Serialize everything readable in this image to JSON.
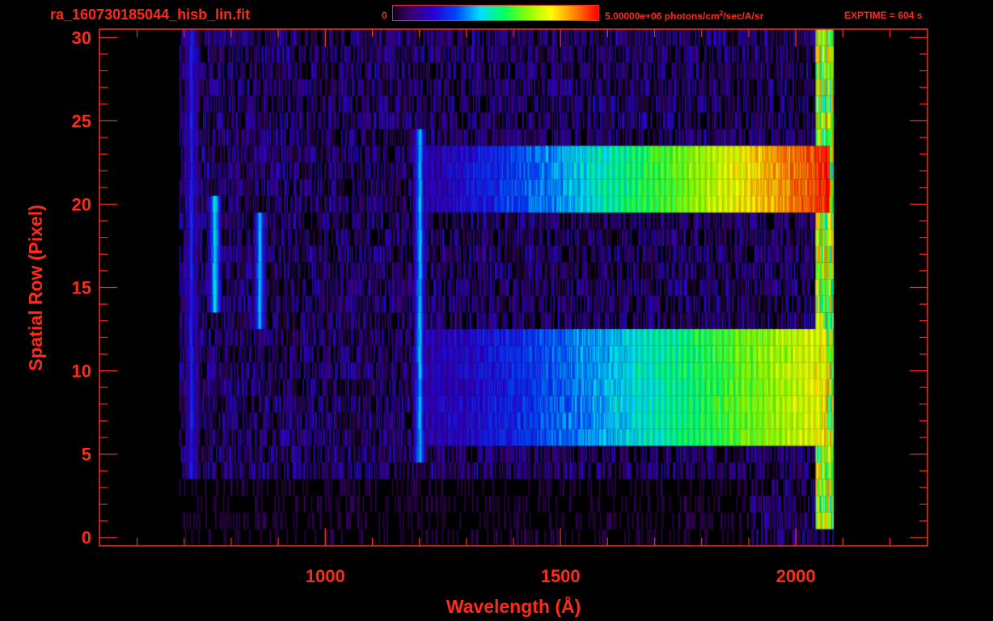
{
  "header": {
    "file_title": "ra_160730185044_hisb_lin.fit",
    "colorbar_min": "0",
    "colorbar_max_prefix": "5.00000e+06 photons/cm",
    "colorbar_max_sup": "2",
    "colorbar_max_suffix": "/sec/A/sr",
    "exptime": "EXPTIME = 604 s"
  },
  "colors": {
    "axis": "#ff2a1a",
    "background": "#000000",
    "colormap": [
      "#000000",
      "#3a0066",
      "#2a00cc",
      "#0044ff",
      "#00ddff",
      "#00ff66",
      "#88ff00",
      "#ffff00",
      "#ff8800",
      "#ff0000"
    ]
  },
  "chart_data": {
    "type": "heatmap",
    "title": "ra_160730185044_hisb_lin.fit",
    "xlabel": "Wavelength (Å)",
    "ylabel": "Spatial Row (Pixel)",
    "xlim": [
      520,
      2280
    ],
    "ylim": [
      -0.5,
      30.5
    ],
    "x_ticks": [
      1000,
      1500,
      2000
    ],
    "x_tick_labels": [
      "1000",
      "1500",
      "2000"
    ],
    "x_minor_step": 100,
    "y_ticks": [
      0,
      5,
      10,
      15,
      20,
      25,
      30
    ],
    "y_tick_labels": [
      "0",
      "5",
      "10",
      "15",
      "20",
      "25",
      "30"
    ],
    "y_minor_step": 1,
    "colorbar_range": [
      0,
      5000000
    ],
    "colorbar_units": "photons/cm^2/sec/A/sr",
    "exptime_s": 604,
    "data_extent_x": [
      690,
      2080
    ],
    "data_extent_y": [
      0,
      30
    ],
    "features": [
      {
        "name": "bright band",
        "rows": [
          19.5,
          23.5
        ],
        "x_from": 1190,
        "x_to": 2070,
        "peak_level": 0.8
      },
      {
        "name": "bright band",
        "rows": [
          5.5,
          12.5
        ],
        "x_from": 1190,
        "x_to": 2065,
        "peak_level": 0.6
      },
      {
        "name": "emission line",
        "x": 1200,
        "rows": [
          5,
          24
        ],
        "level": 0.4
      },
      {
        "name": "emission line",
        "x": 765,
        "rows": [
          14,
          20
        ],
        "level": 0.45
      },
      {
        "name": "emission line",
        "x": 860,
        "rows": [
          13,
          19
        ],
        "level": 0.4
      },
      {
        "name": "emission line",
        "x": 715,
        "rows": [
          4,
          30
        ],
        "level": 0.25
      }
    ]
  }
}
